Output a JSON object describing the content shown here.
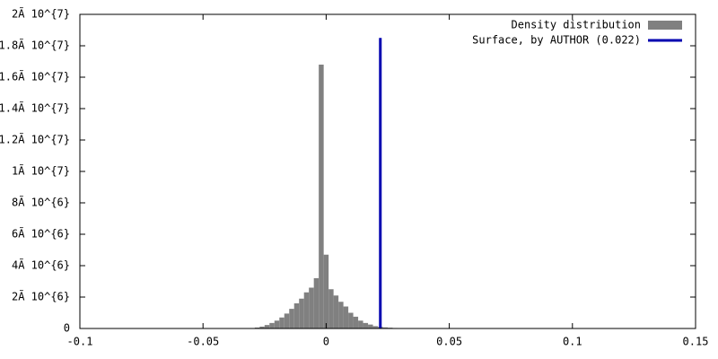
{
  "chart_data": {
    "type": "histogram",
    "xlim": [
      -0.1,
      0.15
    ],
    "xticks": [
      -0.1,
      -0.05,
      0,
      0.05,
      0.1,
      0.15
    ],
    "ylim": [
      0,
      20000000
    ],
    "yticks": [
      0,
      {
        "value": 2000000,
        "label": "2Ã 10^{6}"
      },
      {
        "value": 4000000,
        "label": "4Ã 10^{6}"
      },
      {
        "value": 6000000,
        "label": "6Ã 10^{6}"
      },
      {
        "value": 8000000,
        "label": "8Ã 10^{6}"
      },
      {
        "value": 10000000,
        "label": "1Ã 10^{7}"
      },
      {
        "value": 12000000,
        "label": "1.2Ã 10^{7}"
      },
      {
        "value": 14000000,
        "label": "1.4Ã 10^{7}"
      },
      {
        "value": 16000000,
        "label": "1.6Ã 10^{7}"
      },
      {
        "value": 18000000,
        "label": "1.8Ã 10^{7}"
      },
      {
        "value": 20000000,
        "label": "2Ã 10^{7}"
      }
    ],
    "legend": "top-right",
    "histogram": {
      "name": "Density distribution",
      "color": "#808080",
      "bins": [
        -0.031,
        -0.029,
        -0.027,
        -0.025,
        -0.023,
        -0.021,
        -0.019,
        -0.017,
        -0.015,
        -0.013,
        -0.011,
        -0.009,
        -0.007,
        -0.005,
        -0.003,
        -0.001,
        0.001,
        0.003,
        0.005,
        0.007,
        0.009,
        0.011,
        0.013,
        0.015,
        0.017,
        0.019,
        0.021,
        0.023,
        0.025,
        0.027,
        0.029,
        0.031
      ],
      "counts": [
        30000,
        60000,
        120000,
        220000,
        350000,
        500000,
        700000,
        950000,
        1250000,
        1600000,
        1900000,
        2300000,
        2600000,
        3200000,
        16800000,
        4700000,
        2500000,
        2100000,
        1700000,
        1400000,
        1000000,
        750000,
        500000,
        350000,
        250000,
        150000,
        100000,
        70000,
        50000,
        30000,
        20000
      ]
    },
    "line": {
      "name": "Surface, by AUTHOR (0.022)",
      "color": "#0000b0",
      "x": [
        0.022,
        0.022
      ],
      "values": [
        0,
        18500000
      ]
    }
  }
}
